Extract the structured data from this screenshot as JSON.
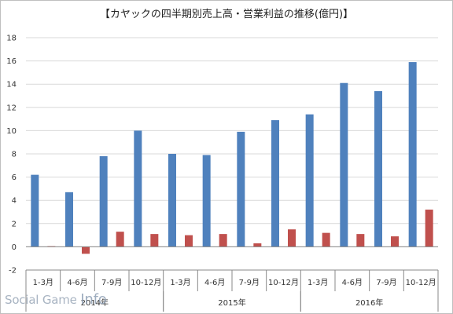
{
  "chart_data": {
    "type": "bar",
    "title": "【カヤックの四半期別売上高・営業利益の推移(億円)】",
    "categories": [
      "1-3月",
      "4-6月",
      "7-9月",
      "10-12月",
      "1-3月",
      "4-6月",
      "7-9月",
      "10-12月",
      "1-3月",
      "4-6月",
      "7-9月",
      "10-12月"
    ],
    "year_groups": [
      {
        "label": "2014年",
        "start": 0,
        "count": 4
      },
      {
        "label": "2015年",
        "start": 4,
        "count": 4
      },
      {
        "label": "2016年",
        "start": 8,
        "count": 4
      }
    ],
    "series": [
      {
        "key": "sales",
        "color": "#4f81bd",
        "values": [
          6.2,
          4.7,
          7.8,
          10.0,
          8.0,
          7.9,
          9.9,
          10.9,
          11.4,
          14.1,
          13.4,
          15.9
        ]
      },
      {
        "key": "operating_profit",
        "color": "#c0504d",
        "values": [
          0.05,
          -0.6,
          1.3,
          1.1,
          1.0,
          1.1,
          0.3,
          1.5,
          1.2,
          1.1,
          0.9,
          3.2
        ]
      }
    ],
    "ylim": [
      -2,
      18
    ],
    "yticks": [
      -2,
      0,
      2,
      4,
      6,
      8,
      10,
      12,
      14,
      16,
      18
    ],
    "grid": true,
    "legend": "none"
  },
  "watermark": {
    "part1": "Social Game ",
    "part2": "Info"
  }
}
